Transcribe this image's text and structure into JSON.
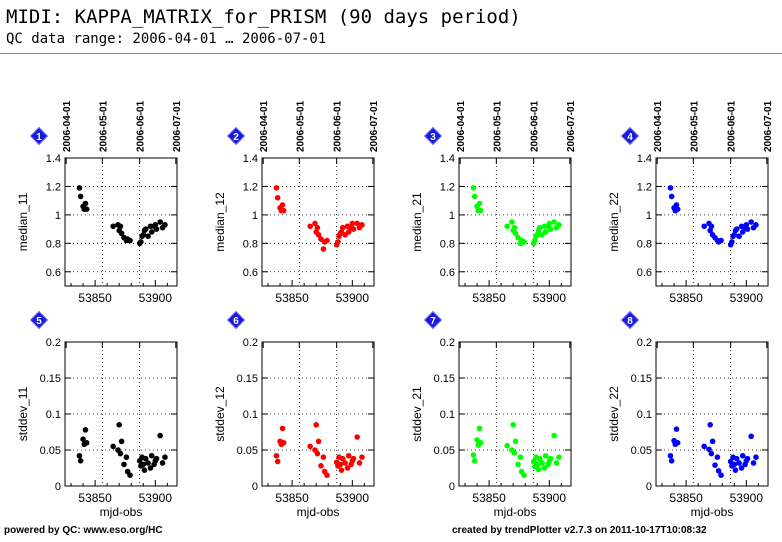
{
  "header": {
    "title": "MIDI: KAPPA_MATRIX_for_PRISM (90 days period)",
    "subtitle": "QC data range: 2006-04-01 … 2006-07-01"
  },
  "footer": {
    "left": "powered by QC: www.eso.org/HC",
    "right": "created by trendPlotter v2.7.3 on 2011-10-17T10:08:32"
  },
  "top_axis_dates": [
    "2006-04-01",
    "2006-05-01",
    "2006-06-01",
    "2006-07-01"
  ],
  "chart_data": [
    {
      "panel_number": "1",
      "type": "scatter",
      "ylabel": "median_11",
      "color": "#000000",
      "ylim": [
        0.5,
        1.4
      ],
      "yticks": [
        "0.6",
        "0.8",
        "1",
        "1.2",
        "1.4"
      ],
      "xlim": [
        53825,
        53918
      ],
      "xticks": [
        "53850",
        "53900"
      ],
      "xlabel": "",
      "x": [
        53837,
        53838,
        53840,
        53841,
        53842,
        53843,
        53865,
        53869,
        53870,
        53871,
        53872,
        53874,
        53876,
        53877,
        53879,
        53887,
        53888,
        53889,
        53890,
        53891,
        53892,
        53894,
        53896,
        53897,
        53899,
        53900,
        53901,
        53904,
        53906,
        53908
      ],
      "y": [
        1.19,
        1.13,
        1.06,
        1.04,
        1.08,
        1.04,
        0.92,
        0.93,
        0.89,
        0.92,
        0.87,
        0.84,
        0.82,
        0.83,
        0.82,
        0.8,
        0.81,
        0.85,
        0.86,
        0.89,
        0.9,
        0.85,
        0.92,
        0.88,
        0.92,
        0.93,
        0.9,
        0.95,
        0.91,
        0.93
      ]
    },
    {
      "panel_number": "2",
      "type": "scatter",
      "ylabel": "median_12",
      "color": "#ff0000",
      "ylim": [
        0.5,
        1.4
      ],
      "yticks": [
        "0.6",
        "0.8",
        "1",
        "1.2",
        "1.4"
      ],
      "xlim": [
        53825,
        53918
      ],
      "xticks": [
        "53850",
        "53900"
      ],
      "xlabel": "",
      "x": [
        53837,
        53838,
        53840,
        53841,
        53842,
        53843,
        53865,
        53869,
        53870,
        53871,
        53872,
        53874,
        53876,
        53877,
        53879,
        53887,
        53888,
        53889,
        53890,
        53891,
        53892,
        53894,
        53896,
        53897,
        53899,
        53900,
        53901,
        53904,
        53906,
        53908
      ],
      "y": [
        1.19,
        1.12,
        1.05,
        1.03,
        1.07,
        1.03,
        0.92,
        0.94,
        0.88,
        0.91,
        0.86,
        0.83,
        0.76,
        0.81,
        0.82,
        0.79,
        0.81,
        0.85,
        0.87,
        0.88,
        0.91,
        0.86,
        0.92,
        0.88,
        0.91,
        0.94,
        0.9,
        0.94,
        0.91,
        0.93
      ]
    },
    {
      "panel_number": "3",
      "type": "scatter",
      "ylabel": "median_21",
      "color": "#00ff00",
      "ylim": [
        0.5,
        1.4
      ],
      "yticks": [
        "0.6",
        "0.8",
        "1",
        "1.2",
        "1.4"
      ],
      "xlim": [
        53825,
        53918
      ],
      "xticks": [
        "53850",
        "53900"
      ],
      "xlabel": "",
      "x": [
        53837,
        53838,
        53840,
        53841,
        53842,
        53843,
        53865,
        53869,
        53870,
        53871,
        53872,
        53874,
        53876,
        53877,
        53879,
        53887,
        53888,
        53889,
        53890,
        53891,
        53892,
        53894,
        53896,
        53897,
        53899,
        53900,
        53901,
        53904,
        53906,
        53908
      ],
      "y": [
        1.19,
        1.13,
        1.06,
        1.03,
        1.08,
        1.03,
        0.92,
        0.95,
        0.89,
        0.91,
        0.87,
        0.84,
        0.8,
        0.82,
        0.81,
        0.8,
        0.82,
        0.85,
        0.86,
        0.89,
        0.91,
        0.86,
        0.92,
        0.88,
        0.92,
        0.94,
        0.9,
        0.95,
        0.91,
        0.93
      ]
    },
    {
      "panel_number": "4",
      "type": "scatter",
      "ylabel": "median_22",
      "color": "#0000ff",
      "ylim": [
        0.5,
        1.4
      ],
      "yticks": [
        "0.6",
        "0.8",
        "1",
        "1.2",
        "1.4"
      ],
      "xlim": [
        53825,
        53918
      ],
      "xticks": [
        "53850",
        "53900"
      ],
      "xlabel": "",
      "x": [
        53837,
        53838,
        53840,
        53841,
        53842,
        53843,
        53865,
        53869,
        53870,
        53871,
        53872,
        53874,
        53876,
        53877,
        53879,
        53887,
        53888,
        53889,
        53890,
        53891,
        53892,
        53894,
        53896,
        53897,
        53899,
        53900,
        53901,
        53904,
        53906,
        53908
      ],
      "y": [
        1.19,
        1.13,
        1.05,
        1.03,
        1.07,
        1.04,
        0.92,
        0.94,
        0.89,
        0.92,
        0.86,
        0.84,
        0.82,
        0.81,
        0.82,
        0.79,
        0.81,
        0.85,
        0.86,
        0.89,
        0.9,
        0.85,
        0.92,
        0.88,
        0.91,
        0.93,
        0.9,
        0.95,
        0.91,
        0.93
      ]
    },
    {
      "panel_number": "5",
      "type": "scatter",
      "ylabel": "stddev_11",
      "color": "#000000",
      "ylim": [
        0,
        0.2
      ],
      "yticks": [
        "0",
        "0.05",
        "0.1",
        "0.15",
        "0.2"
      ],
      "xlim": [
        53825,
        53918
      ],
      "xticks": [
        "53850",
        "53900"
      ],
      "xlabel": "mjd-obs",
      "x": [
        53837,
        53838,
        53840,
        53841,
        53842,
        53843,
        53865,
        53869,
        53870,
        53871,
        53872,
        53874,
        53876,
        53877,
        53879,
        53887,
        53888,
        53889,
        53890,
        53891,
        53892,
        53894,
        53896,
        53897,
        53899,
        53900,
        53901,
        53904,
        53906,
        53908
      ],
      "y": [
        0.042,
        0.035,
        0.065,
        0.058,
        0.078,
        0.06,
        0.055,
        0.05,
        0.085,
        0.045,
        0.062,
        0.03,
        0.04,
        0.02,
        0.015,
        0.035,
        0.028,
        0.04,
        0.03,
        0.022,
        0.038,
        0.032,
        0.025,
        0.042,
        0.03,
        0.035,
        0.038,
        0.07,
        0.032,
        0.04
      ]
    },
    {
      "panel_number": "6",
      "type": "scatter",
      "ylabel": "stddev_12",
      "color": "#ff0000",
      "ylim": [
        0,
        0.2
      ],
      "yticks": [
        "0",
        "0.05",
        "0.1",
        "0.15",
        "0.2"
      ],
      "xlim": [
        53825,
        53918
      ],
      "xticks": [
        "53850",
        "53900"
      ],
      "xlabel": "mjd-obs",
      "x": [
        53837,
        53838,
        53840,
        53841,
        53842,
        53843,
        53865,
        53869,
        53870,
        53871,
        53872,
        53874,
        53876,
        53877,
        53879,
        53887,
        53888,
        53889,
        53890,
        53891,
        53892,
        53894,
        53896,
        53897,
        53899,
        53900,
        53901,
        53904,
        53906,
        53908
      ],
      "y": [
        0.042,
        0.034,
        0.062,
        0.058,
        0.08,
        0.06,
        0.055,
        0.05,
        0.085,
        0.045,
        0.062,
        0.028,
        0.04,
        0.02,
        0.015,
        0.033,
        0.028,
        0.04,
        0.03,
        0.022,
        0.038,
        0.032,
        0.025,
        0.042,
        0.03,
        0.035,
        0.038,
        0.068,
        0.032,
        0.04
      ]
    },
    {
      "panel_number": "7",
      "type": "scatter",
      "ylabel": "stddev_21",
      "color": "#00ff00",
      "ylim": [
        0,
        0.2
      ],
      "yticks": [
        "0",
        "0.05",
        "0.1",
        "0.15",
        "0.2"
      ],
      "xlim": [
        53825,
        53918
      ],
      "xticks": [
        "53850",
        "53900"
      ],
      "xlabel": "mjd-obs",
      "x": [
        53837,
        53838,
        53840,
        53841,
        53842,
        53843,
        53865,
        53869,
        53870,
        53871,
        53872,
        53874,
        53876,
        53877,
        53879,
        53887,
        53888,
        53889,
        53890,
        53891,
        53892,
        53894,
        53896,
        53897,
        53899,
        53900,
        53901,
        53904,
        53906,
        53908
      ],
      "y": [
        0.043,
        0.035,
        0.064,
        0.057,
        0.08,
        0.06,
        0.056,
        0.05,
        0.085,
        0.046,
        0.062,
        0.03,
        0.04,
        0.02,
        0.015,
        0.034,
        0.027,
        0.04,
        0.03,
        0.023,
        0.038,
        0.032,
        0.025,
        0.042,
        0.03,
        0.035,
        0.038,
        0.07,
        0.032,
        0.04
      ]
    },
    {
      "panel_number": "8",
      "type": "scatter",
      "ylabel": "stddev_22",
      "color": "#0000ff",
      "ylim": [
        0,
        0.2
      ],
      "yticks": [
        "0",
        "0.05",
        "0.1",
        "0.15",
        "0.2"
      ],
      "xlim": [
        53825,
        53918
      ],
      "xticks": [
        "53850",
        "53900"
      ],
      "xlabel": "mjd-obs",
      "x": [
        53837,
        53838,
        53840,
        53841,
        53842,
        53843,
        53865,
        53869,
        53870,
        53871,
        53872,
        53874,
        53876,
        53877,
        53879,
        53887,
        53888,
        53889,
        53890,
        53891,
        53892,
        53894,
        53896,
        53897,
        53899,
        53900,
        53901,
        53904,
        53906,
        53908
      ],
      "y": [
        0.042,
        0.035,
        0.063,
        0.058,
        0.079,
        0.06,
        0.055,
        0.051,
        0.085,
        0.045,
        0.062,
        0.029,
        0.04,
        0.021,
        0.015,
        0.034,
        0.028,
        0.04,
        0.03,
        0.022,
        0.038,
        0.032,
        0.025,
        0.042,
        0.03,
        0.035,
        0.038,
        0.069,
        0.032,
        0.04
      ]
    }
  ]
}
